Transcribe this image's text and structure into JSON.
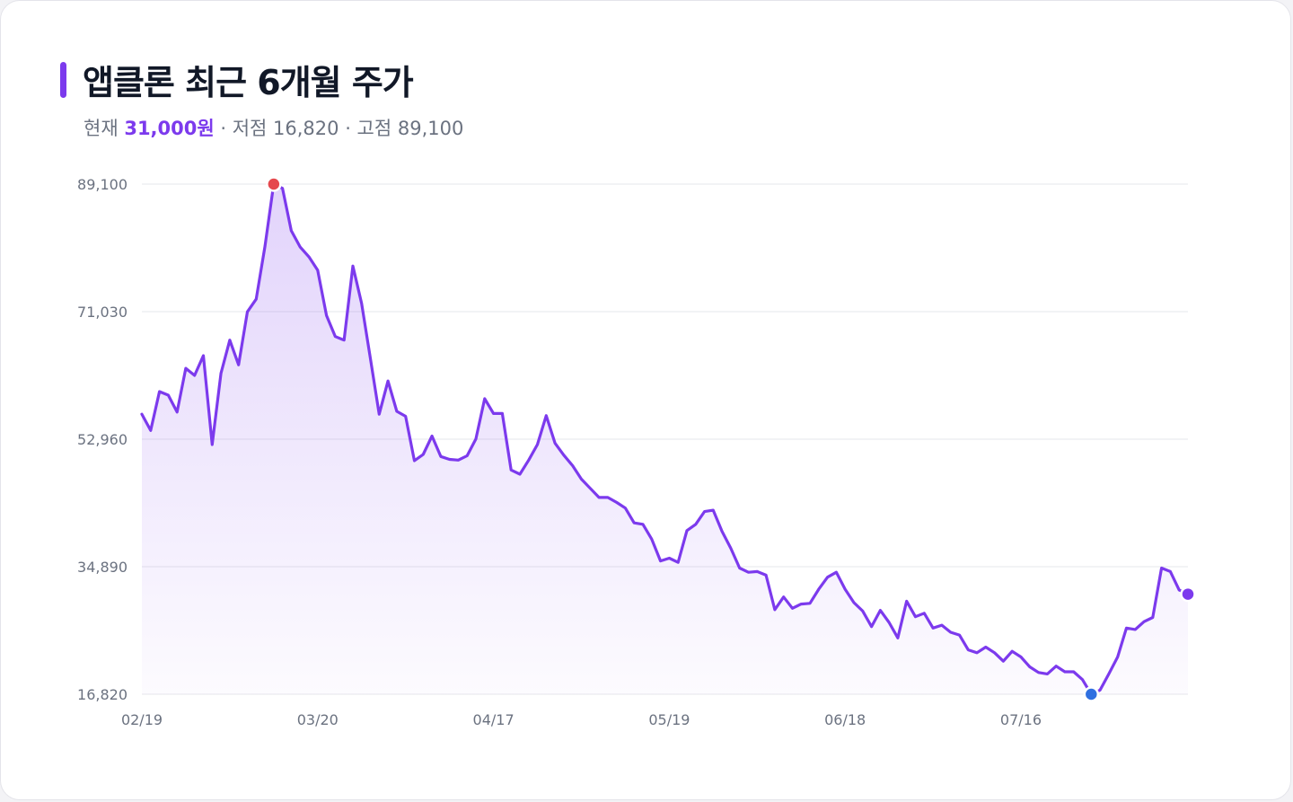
{
  "header": {
    "title": "앱클론 최근 6개월 주가",
    "current_label": "현재",
    "current_value": "31,000원",
    "separator": " · ",
    "low_text": "저점 16,820",
    "high_text": "고점 89,100"
  },
  "colors": {
    "accent": "#7c3aed",
    "line": "#7c3aed",
    "high_marker": "#e5484d",
    "low_marker": "#2f6fe0",
    "last_marker": "#7c3aed",
    "grid": "#e5e7eb",
    "tick_text": "#6b7280"
  },
  "chart_data": {
    "type": "area",
    "xlabel": "",
    "ylabel": "",
    "y_ticks": [
      16820,
      34890,
      52960,
      71030,
      89100
    ],
    "y_tick_labels": [
      "16,820",
      "34,890",
      "52,960",
      "71,030",
      "89,100"
    ],
    "ylim": [
      16820,
      89100
    ],
    "x_tick_labels": [
      "02/19",
      "03/20",
      "04/17",
      "05/19",
      "06/18",
      "07/16"
    ],
    "x_tick_index": [
      0,
      20,
      40,
      60,
      80,
      100
    ],
    "grid": true,
    "series": [
      {
        "values": [
          56500,
          54200,
          59700,
          59200,
          56800,
          63000,
          62000,
          64800,
          52200,
          62300,
          67000,
          63500,
          71000,
          72800,
          80300,
          89100,
          88500,
          82500,
          80200,
          78800,
          76900,
          70500,
          67500,
          67000,
          77500,
          72200,
          64400,
          56500,
          61200,
          56900,
          56200,
          49900,
          50800,
          53400,
          50500,
          50100,
          50000,
          50600,
          53000,
          58700,
          56600,
          56600,
          48600,
          48000,
          50000,
          52200,
          56300,
          52400,
          50700,
          49200,
          47300,
          46000,
          44700,
          44700,
          44000,
          43200,
          41100,
          40900,
          38800,
          35700,
          36100,
          35500,
          40000,
          40900,
          42700,
          42900,
          39900,
          37500,
          34700,
          34100,
          34200,
          33700,
          28800,
          30600,
          29000,
          29600,
          29700,
          31700,
          33400,
          34100,
          31700,
          29800,
          28600,
          26400,
          28700,
          27000,
          24800,
          30000,
          27800,
          28300,
          26200,
          26600,
          25600,
          25200,
          23100,
          22700,
          23500,
          22700,
          21500,
          22900,
          22100,
          20700,
          19900,
          19700,
          20800,
          20000,
          20000,
          18900,
          16820,
          17400,
          19700,
          22100,
          26200,
          26000,
          27100,
          27700,
          34700,
          34200,
          31600,
          31000
        ]
      }
    ],
    "markers": {
      "high": {
        "value": 89100
      },
      "low": {
        "value": 16820
      },
      "last": {
        "value": 31000
      }
    }
  }
}
